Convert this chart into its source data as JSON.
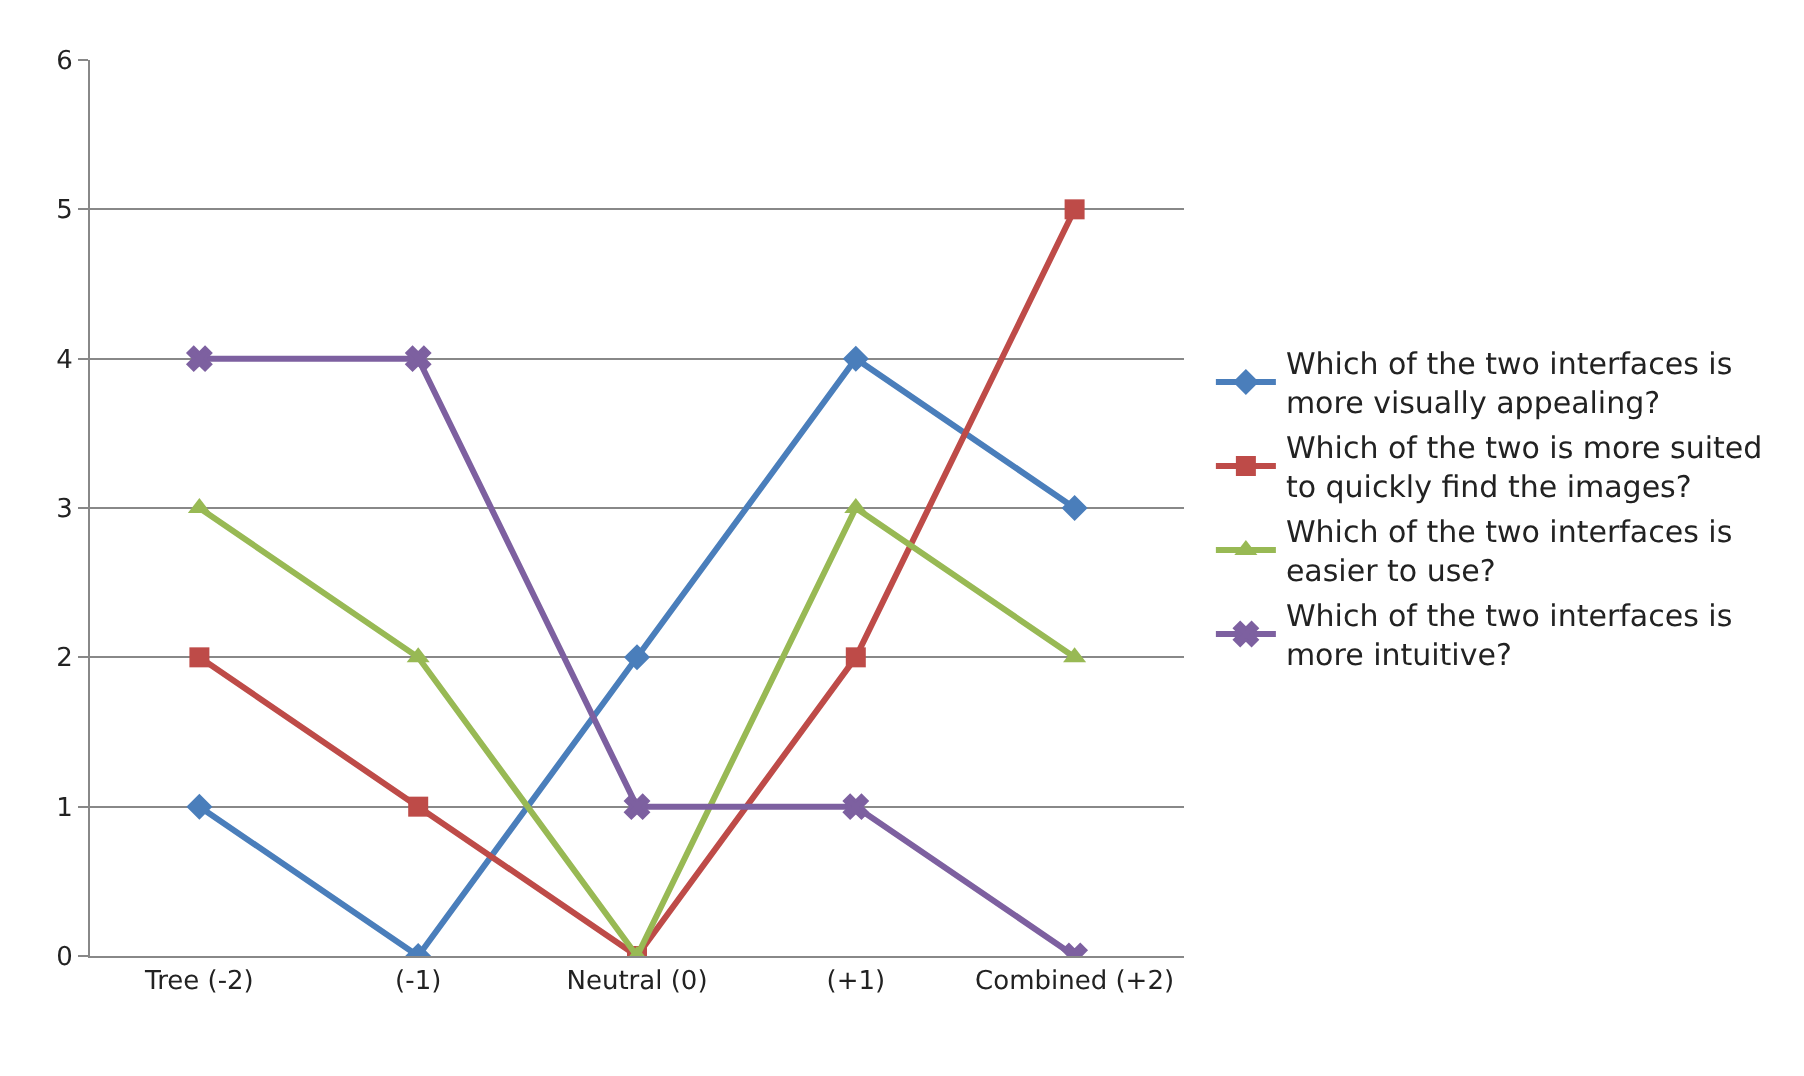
{
  "chart_data": {
    "type": "line",
    "categories": [
      "Tree (-2)",
      "(-1)",
      "Neutral (0)",
      "(+1)",
      "Combined (+2)"
    ],
    "series": [
      {
        "name": "Which of the two interfaces is\nmore visually appealing?",
        "color": "#4a7ebb",
        "marker": "diamond",
        "values": [
          1,
          0,
          2,
          4,
          3
        ]
      },
      {
        "name": "Which of the two is more suited\nto quickly find the images?",
        "color": "#be4b48",
        "marker": "square",
        "values": [
          2,
          1,
          0,
          2,
          5
        ]
      },
      {
        "name": "Which of the two interfaces is\neasier to use?",
        "color": "#98b954",
        "marker": "triangle",
        "values": [
          3,
          2,
          0,
          3,
          2
        ]
      },
      {
        "name": "Which of the two interfaces is\nmore intuitive?",
        "color": "#7d60a0",
        "marker": "cross",
        "values": [
          4,
          4,
          1,
          1,
          0
        ]
      }
    ],
    "ylim": [
      0,
      6
    ],
    "yticks": [
      0,
      1,
      2,
      3,
      4,
      5,
      6
    ],
    "grid": "y",
    "legend": "right",
    "line_style": "solid"
  }
}
